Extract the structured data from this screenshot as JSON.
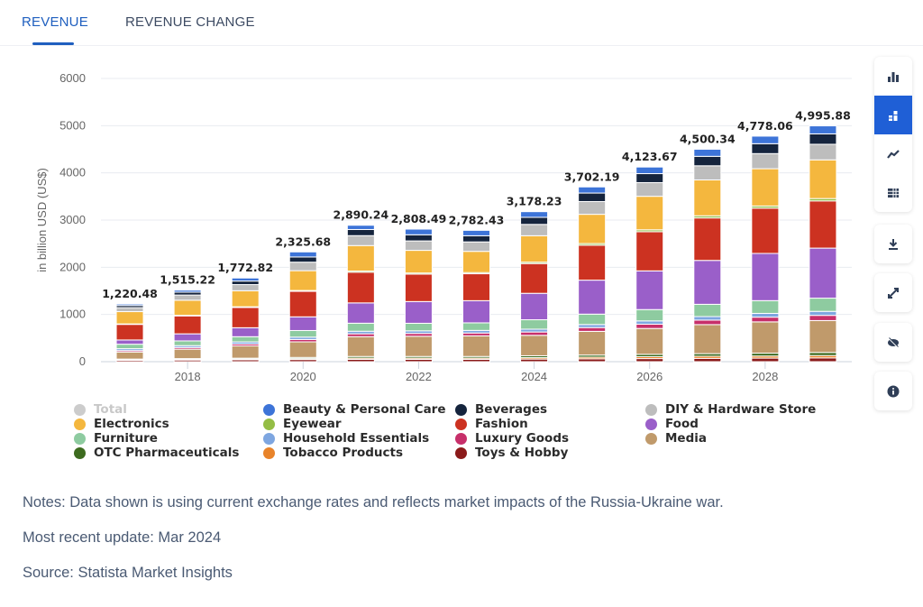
{
  "tabs": [
    {
      "label": "REVENUE",
      "active": true
    },
    {
      "label": "REVENUE CHANGE",
      "active": false
    }
  ],
  "toolbar": {
    "group": [
      {
        "icon": "bar-chart-icon",
        "selected": false
      },
      {
        "icon": "stacked-bar-chart-icon",
        "selected": true
      },
      {
        "icon": "line-chart-icon",
        "selected": false
      },
      {
        "icon": "table-icon",
        "selected": false
      }
    ],
    "download": {
      "icon": "download-icon"
    },
    "fullscreen": {
      "icon": "expand-icon"
    },
    "hide": {
      "icon": "eye-slash-icon"
    },
    "info": {
      "icon": "info-icon"
    },
    "accent": "#1f5fd6",
    "icon_color": "#2f3e57"
  },
  "chart_data": {
    "type": "bar",
    "stacked": true,
    "ylabel": "in billion USD (US$)",
    "ylim": [
      0,
      6000
    ],
    "yticks": [
      "0",
      "1000",
      "2000",
      "3000",
      "4000",
      "5000",
      "6000"
    ],
    "categories": [
      "2017",
      "2018",
      "2019",
      "2020",
      "2021",
      "2022",
      "2023",
      "2024",
      "2025",
      "2026",
      "2027",
      "2028",
      "2029"
    ],
    "xtick_labels": [
      "2018",
      "2020",
      "2022",
      "2024",
      "2026",
      "2028"
    ],
    "grid": true,
    "legend_placement": "bottom",
    "totals": [
      "1,220.48",
      "1,515.22",
      "1,772.82",
      "2,325.68",
      "2,890.24",
      "2,808.49",
      "2,782.43",
      "3,178.23",
      "3,702.19",
      "4,123.67",
      "4,500.34",
      "4,778.06",
      "4,995.88"
    ],
    "legend": [
      {
        "name": "Total",
        "color": "#cccccc",
        "hidden": true
      },
      {
        "name": "Beauty & Personal Care",
        "color": "#3d74d8"
      },
      {
        "name": "Beverages",
        "color": "#15243d"
      },
      {
        "name": "DIY & Hardware Store",
        "color": "#bdbdbd"
      },
      {
        "name": "Electronics",
        "color": "#f4b73e"
      },
      {
        "name": "Eyewear",
        "color": "#94bd45"
      },
      {
        "name": "Fashion",
        "color": "#cc3221"
      },
      {
        "name": "Food",
        "color": "#9a5fc9"
      },
      {
        "name": "Furniture",
        "color": "#8ecba0"
      },
      {
        "name": "Household Essentials",
        "color": "#7ea6e0"
      },
      {
        "name": "Luxury Goods",
        "color": "#c72f6a"
      },
      {
        "name": "Media",
        "color": "#c09a6b"
      },
      {
        "name": "OTC Pharmaceuticals",
        "color": "#3d6b1f"
      },
      {
        "name": "Tobacco Products",
        "color": "#e8832a"
      },
      {
        "name": "Toys & Hobby",
        "color": "#8b1a1a"
      }
    ],
    "series": [
      {
        "name": "Toys & Hobby",
        "values": [
          30,
          35,
          40,
          45,
          50,
          50,
          50,
          55,
          60,
          65,
          70,
          75,
          80
        ]
      },
      {
        "name": "Tobacco Products",
        "values": [
          10,
          12,
          14,
          20,
          25,
          25,
          25,
          30,
          35,
          40,
          45,
          45,
          50
        ]
      },
      {
        "name": "OTC Pharmaceuticals",
        "values": [
          15,
          18,
          20,
          25,
          35,
          35,
          35,
          40,
          45,
          50,
          55,
          60,
          65
        ]
      },
      {
        "name": "Media",
        "values": [
          150,
          200,
          260,
          330,
          420,
          428.49,
          437.43,
          433.23,
          502.19,
          548.67,
          615.34,
          663.06,
          675.88
        ]
      },
      {
        "name": "Luxury Goods",
        "values": [
          30,
          35,
          40,
          50,
          60,
          60,
          60,
          70,
          80,
          90,
          95,
          100,
          110
        ]
      },
      {
        "name": "Household Essentials",
        "values": [
          40,
          40,
          45,
          50,
          55,
          55,
          55,
          60,
          65,
          70,
          75,
          80,
          85
        ]
      },
      {
        "name": "Furniture",
        "values": [
          95,
          100,
          110,
          140,
          170,
          160,
          160,
          200,
          220,
          240,
          260,
          270,
          280
        ]
      },
      {
        "name": "Food",
        "values": [
          90,
          150,
          190,
          290,
          430,
          460,
          470,
          560,
          720,
          820,
          930,
          1000,
          1060
        ]
      },
      {
        "name": "Fashion",
        "values": [
          330,
          380,
          430,
          540,
          650,
          580,
          570,
          630,
          740,
          830,
          900,
          960,
          1000
        ]
      },
      {
        "name": "Eyewear",
        "values": [
          10,
          12,
          14,
          18,
          25,
          25,
          25,
          30,
          35,
          40,
          45,
          45,
          50
        ]
      },
      {
        "name": "Electronics",
        "values": [
          260,
          320,
          340,
          420,
          540,
          480,
          450,
          560,
          620,
          710,
          760,
          790,
          820
        ]
      },
      {
        "name": "DIY & Hardware Store",
        "values": [
          85,
          110,
          130,
          180,
          210,
          200,
          200,
          240,
          270,
          290,
          300,
          320,
          330
        ]
      },
      {
        "name": "Beverages",
        "values": [
          45,
          60,
          75,
          110,
          130,
          130,
          130,
          150,
          180,
          190,
          200,
          210,
          220
        ]
      },
      {
        "name": "Beauty & Personal Care",
        "values": [
          30.48,
          43.22,
          64.82,
          107.68,
          90.24,
          120,
          115,
          120,
          130,
          140,
          150,
          160,
          170
        ]
      }
    ]
  },
  "notes": {
    "note": "Notes: Data shown is using current exchange rates and reflects market impacts of the Russia-Ukraine war.",
    "update": "Most recent update: Mar 2024",
    "source": "Source: Statista Market Insights"
  }
}
